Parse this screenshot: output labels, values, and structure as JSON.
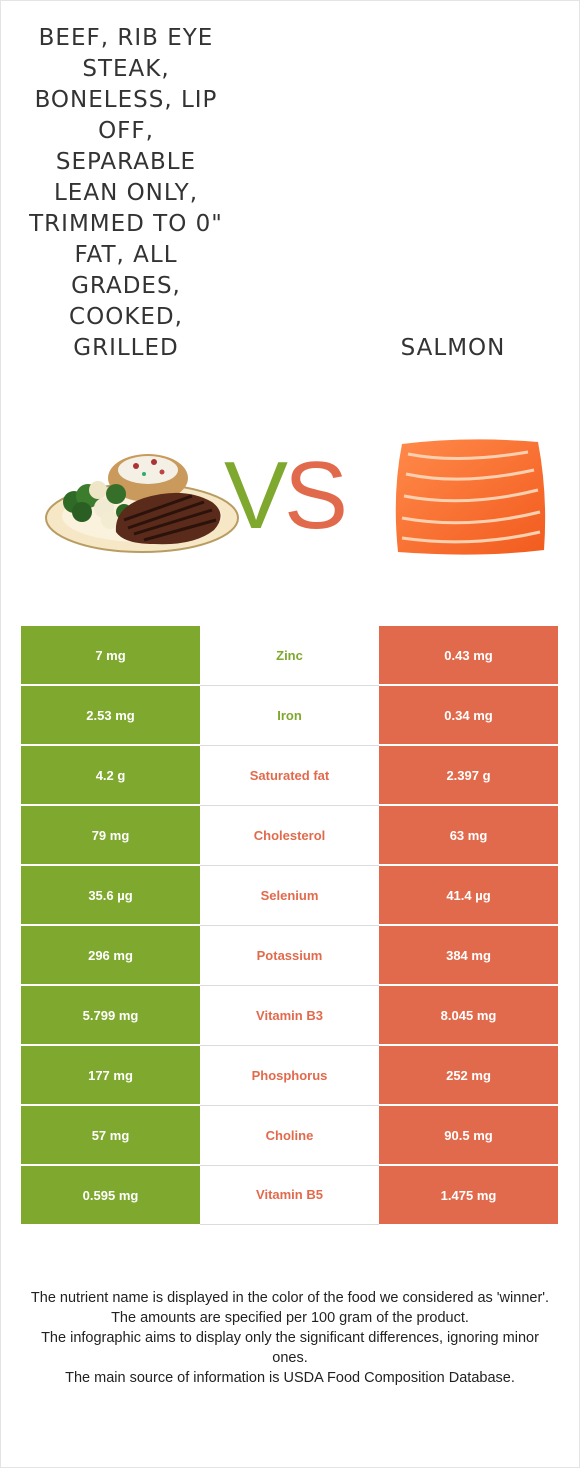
{
  "food_left": {
    "title": "Beef, rib eye steak, boneless, lip off, separable lean only, trimmed to 0\" fat, all grades, cooked, grilled",
    "image_icon": "steak-plate-image"
  },
  "food_right": {
    "title": "Salmon",
    "image_icon": "salmon-fillet-image"
  },
  "vs": {
    "v": "V",
    "s": "S"
  },
  "colors": {
    "left": "#7fa82e",
    "right": "#e26a4c"
  },
  "rows": [
    {
      "nutrient": "Zinc",
      "left": "7 mg",
      "right": "0.43 mg",
      "winner": "left"
    },
    {
      "nutrient": "Iron",
      "left": "2.53 mg",
      "right": "0.34 mg",
      "winner": "left"
    },
    {
      "nutrient": "Saturated fat",
      "left": "4.2 g",
      "right": "2.397 g",
      "winner": "right"
    },
    {
      "nutrient": "Cholesterol",
      "left": "79 mg",
      "right": "63 mg",
      "winner": "right"
    },
    {
      "nutrient": "Selenium",
      "left": "35.6 µg",
      "right": "41.4 µg",
      "winner": "right"
    },
    {
      "nutrient": "Potassium",
      "left": "296 mg",
      "right": "384 mg",
      "winner": "right"
    },
    {
      "nutrient": "Vitamin B3",
      "left": "5.799 mg",
      "right": "8.045 mg",
      "winner": "right"
    },
    {
      "nutrient": "Phosphorus",
      "left": "177 mg",
      "right": "252 mg",
      "winner": "right"
    },
    {
      "nutrient": "Choline",
      "left": "57 mg",
      "right": "90.5 mg",
      "winner": "right"
    },
    {
      "nutrient": "Vitamin B5",
      "left": "0.595 mg",
      "right": "1.475 mg",
      "winner": "right"
    }
  ],
  "footer": {
    "line1": "The nutrient name is displayed in the color of the food we considered as 'winner'.",
    "line2": "The amounts are specified per 100 gram of the product.",
    "line3": "The infographic aims to display only the significant differences, ignoring minor ones.",
    "line4": "The main source of information is USDA Food Composition Database."
  }
}
